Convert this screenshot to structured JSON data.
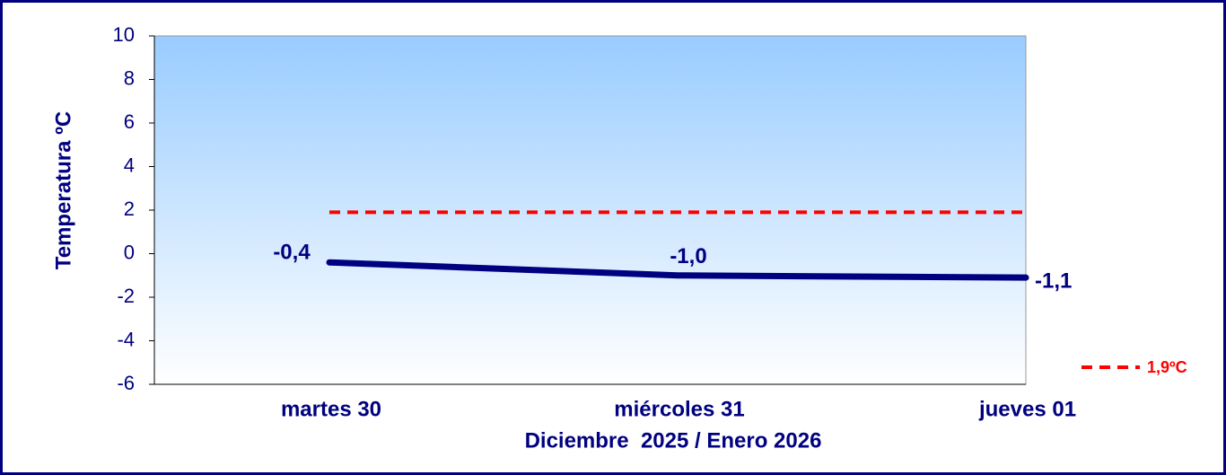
{
  "chart_data": {
    "type": "line",
    "categories": [
      "martes 30",
      "miércoles 31",
      "jueves 01"
    ],
    "x_label": "Diciembre  2025 / Enero 2026",
    "y_label": "Temperatura ºC",
    "series": [
      {
        "name": null,
        "color": "#000080",
        "values": [
          -0.4,
          -1.0,
          -1.1
        ],
        "value_labels": [
          "-0,4",
          "-1,0",
          "-1,1"
        ]
      },
      {
        "name": "1,9ºC",
        "color": "#ff0000",
        "dashed": true,
        "values": [
          1.9,
          1.9,
          1.9
        ]
      }
    ],
    "ylim": [
      -6,
      10
    ],
    "yticks": [
      -6,
      -4,
      -2,
      0,
      2,
      4,
      6,
      8,
      10
    ],
    "grid": false,
    "legend": "lower right"
  }
}
